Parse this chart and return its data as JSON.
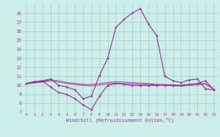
{
  "bg_color": "#cceee8",
  "grid_color": "#aacccc",
  "line_color": "#993399",
  "xlabel": "Windchill (Refroidissement éolien,°C)",
  "xlim": [
    -0.5,
    23.5
  ],
  "ylim": [
    7,
    19
  ],
  "yticks": [
    7,
    8,
    9,
    10,
    11,
    12,
    13,
    14,
    15,
    16,
    17,
    18
  ],
  "xticks": [
    0,
    1,
    2,
    3,
    4,
    5,
    6,
    7,
    8,
    9,
    10,
    11,
    12,
    13,
    14,
    15,
    16,
    17,
    18,
    19,
    20,
    21,
    22,
    23
  ],
  "curve_main": [
    10.2,
    10.4,
    10.5,
    10.7,
    10.0,
    9.8,
    9.5,
    8.5,
    8.8,
    11.1,
    13.0,
    16.4,
    17.3,
    18.0,
    18.5,
    16.8,
    15.5,
    11.0,
    10.5,
    10.3,
    10.6,
    10.7,
    9.6,
    9.5
  ],
  "curve_low": [
    10.2,
    10.4,
    10.5,
    9.8,
    9.2,
    9.0,
    8.5,
    7.8,
    7.3,
    8.8,
    10.0,
    10.2,
    10.1,
    10.0,
    10.0,
    10.0,
    10.0,
    10.0,
    10.0,
    10.0,
    10.1,
    10.2,
    10.5,
    9.5
  ],
  "curve_mid1": [
    10.2,
    10.3,
    10.4,
    10.6,
    10.5,
    10.3,
    10.2,
    10.1,
    10.1,
    10.2,
    10.3,
    10.4,
    10.35,
    10.3,
    10.25,
    10.2,
    10.1,
    10.1,
    10.05,
    10.0,
    10.1,
    10.15,
    10.2,
    9.6
  ],
  "curve_mid2": [
    10.15,
    10.25,
    10.35,
    10.5,
    10.35,
    10.2,
    10.1,
    10.0,
    9.95,
    10.05,
    10.15,
    10.25,
    10.2,
    10.15,
    10.1,
    10.1,
    10.05,
    10.0,
    9.95,
    9.9,
    10.0,
    10.05,
    10.15,
    9.55
  ]
}
